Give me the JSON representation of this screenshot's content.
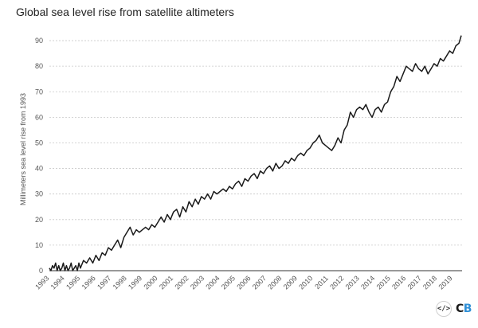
{
  "title": "Global sea level rise from satellite altimeters",
  "footer": {
    "embed_icon": "embed-code-icon",
    "logo": "CB",
    "logo_color": "#2f8fd6"
  },
  "chart_data": {
    "type": "line",
    "title": "Global sea level rise from satellite altimeters",
    "xlabel": "",
    "ylabel": "Millimeters sea level rise from 1993",
    "xlim": [
      1993,
      2019.6
    ],
    "ylim": [
      0,
      95
    ],
    "yticks": [
      0,
      10,
      20,
      30,
      40,
      50,
      60,
      70,
      80,
      90
    ],
    "xticks": [
      "1993",
      "1994",
      "1995",
      "1996",
      "1997",
      "1998",
      "1999",
      "2000",
      "2001",
      "2002",
      "2003",
      "2004",
      "2005",
      "2006",
      "2007",
      "2008",
      "2009",
      "2010",
      "2011",
      "2012",
      "2013",
      "2014",
      "2015",
      "2016",
      "2017",
      "2018",
      "2019"
    ],
    "grid": "horizontal-dashed",
    "line_color": "#1a1a1a",
    "series": [
      {
        "x": [
          1993.0,
          1993.1,
          1993.2,
          1993.3,
          1993.4,
          1993.5,
          1993.6,
          1993.7,
          1993.8,
          1993.9,
          1994.0,
          1994.1,
          1994.2,
          1994.3,
          1994.4,
          1994.5,
          1994.6,
          1994.7,
          1994.8,
          1994.9,
          1995.0,
          1995.2,
          1995.4,
          1995.6,
          1995.8,
          1996.0,
          1996.2,
          1996.4,
          1996.6,
          1996.8,
          1997.0,
          1997.2,
          1997.4,
          1997.6,
          1997.8,
          1998.0,
          1998.2,
          1998.4,
          1998.6,
          1998.8,
          1999.0,
          1999.2,
          1999.4,
          1999.6,
          1999.8,
          2000.0,
          2000.2,
          2000.4,
          2000.6,
          2000.8,
          2001.0,
          2001.2,
          2001.4,
          2001.6,
          2001.8,
          2002.0,
          2002.2,
          2002.4,
          2002.6,
          2002.8,
          2003.0,
          2003.2,
          2003.4,
          2003.6,
          2003.8,
          2004.0,
          2004.2,
          2004.4,
          2004.6,
          2004.8,
          2005.0,
          2005.2,
          2005.4,
          2005.6,
          2005.8,
          2006.0,
          2006.2,
          2006.4,
          2006.6,
          2006.8,
          2007.0,
          2007.2,
          2007.4,
          2007.6,
          2007.8,
          2008.0,
          2008.2,
          2008.4,
          2008.6,
          2008.8,
          2009.0,
          2009.2,
          2009.4,
          2009.6,
          2009.8,
          2010.0,
          2010.2,
          2010.4,
          2010.6,
          2010.8,
          2011.0,
          2011.2,
          2011.4,
          2011.6,
          2011.8,
          2012.0,
          2012.2,
          2012.4,
          2012.6,
          2012.8,
          2013.0,
          2013.2,
          2013.4,
          2013.6,
          2013.8,
          2014.0,
          2014.2,
          2014.4,
          2014.6,
          2014.8,
          2015.0,
          2015.2,
          2015.4,
          2015.6,
          2015.8,
          2016.0,
          2016.2,
          2016.4,
          2016.6,
          2016.8,
          2017.0,
          2017.2,
          2017.4,
          2017.6,
          2017.8,
          2018.0,
          2018.2,
          2018.4,
          2018.6,
          2018.8,
          2019.0,
          2019.2,
          2019.4,
          2019.55
        ],
        "y": [
          1,
          0,
          2,
          1,
          3,
          0,
          2,
          0,
          1,
          3,
          0,
          2,
          0,
          1,
          3,
          0,
          1,
          2,
          0,
          3,
          1,
          4,
          3,
          5,
          3,
          6,
          4,
          7,
          6,
          9,
          8,
          10,
          12,
          9,
          13,
          15,
          17,
          14,
          16,
          15,
          16,
          17,
          16,
          18,
          17,
          19,
          21,
          19,
          22,
          20,
          23,
          24,
          21,
          25,
          23,
          27,
          25,
          28,
          26,
          29,
          28,
          30,
          28,
          31,
          30,
          31,
          32,
          31,
          33,
          32,
          34,
          35,
          33,
          36,
          35,
          37,
          38,
          36,
          39,
          38,
          40,
          41,
          39,
          42,
          40,
          41,
          43,
          42,
          44,
          43,
          45,
          46,
          45,
          47,
          48,
          50,
          51,
          53,
          50,
          49,
          48,
          47,
          49,
          52,
          50,
          55,
          57,
          62,
          60,
          63,
          64,
          63,
          65,
          62,
          60,
          63,
          64,
          62,
          65,
          66,
          70,
          72,
          76,
          74,
          77,
          80,
          79,
          78,
          81,
          79,
          78,
          80,
          77,
          79,
          81,
          80,
          83,
          82,
          84,
          86,
          85,
          88,
          89,
          92
        ]
      }
    ]
  }
}
